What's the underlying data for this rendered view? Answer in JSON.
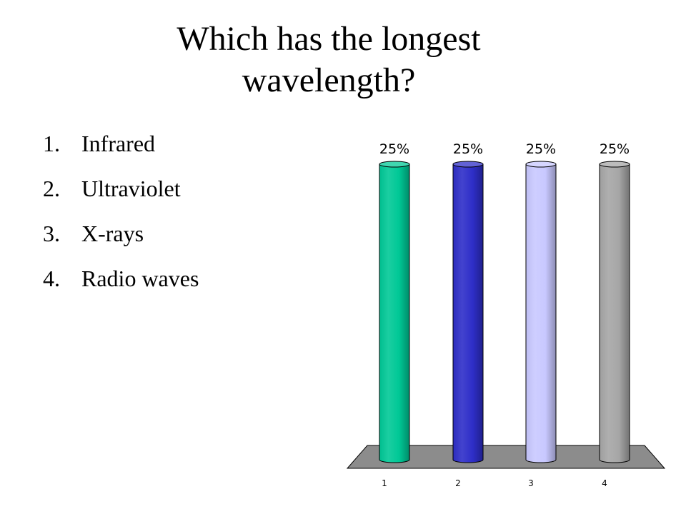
{
  "slide": {
    "title": "Which has the longest wavelength?",
    "options": [
      {
        "number": "1.",
        "label": "Infrared"
      },
      {
        "number": "2.",
        "label": "Ultraviolet"
      },
      {
        "number": "3.",
        "label": "X-rays"
      },
      {
        "number": "4.",
        "label": "Radio waves"
      }
    ]
  },
  "chart_data": {
    "type": "bar",
    "style": "3d-cylinder",
    "categories": [
      "1",
      "2",
      "3",
      "4"
    ],
    "values": [
      25,
      25,
      25,
      25
    ],
    "data_labels": [
      "25%",
      "25%",
      "25%",
      "25%"
    ],
    "colors": [
      "#00c896",
      "#2e2ec8",
      "#c8c8ff",
      "#a6a6a6"
    ],
    "floor_color": "#8c8c8c",
    "ylim": [
      0,
      25
    ],
    "title": "",
    "xlabel": "",
    "ylabel": "",
    "grid": false,
    "legend": "none"
  }
}
